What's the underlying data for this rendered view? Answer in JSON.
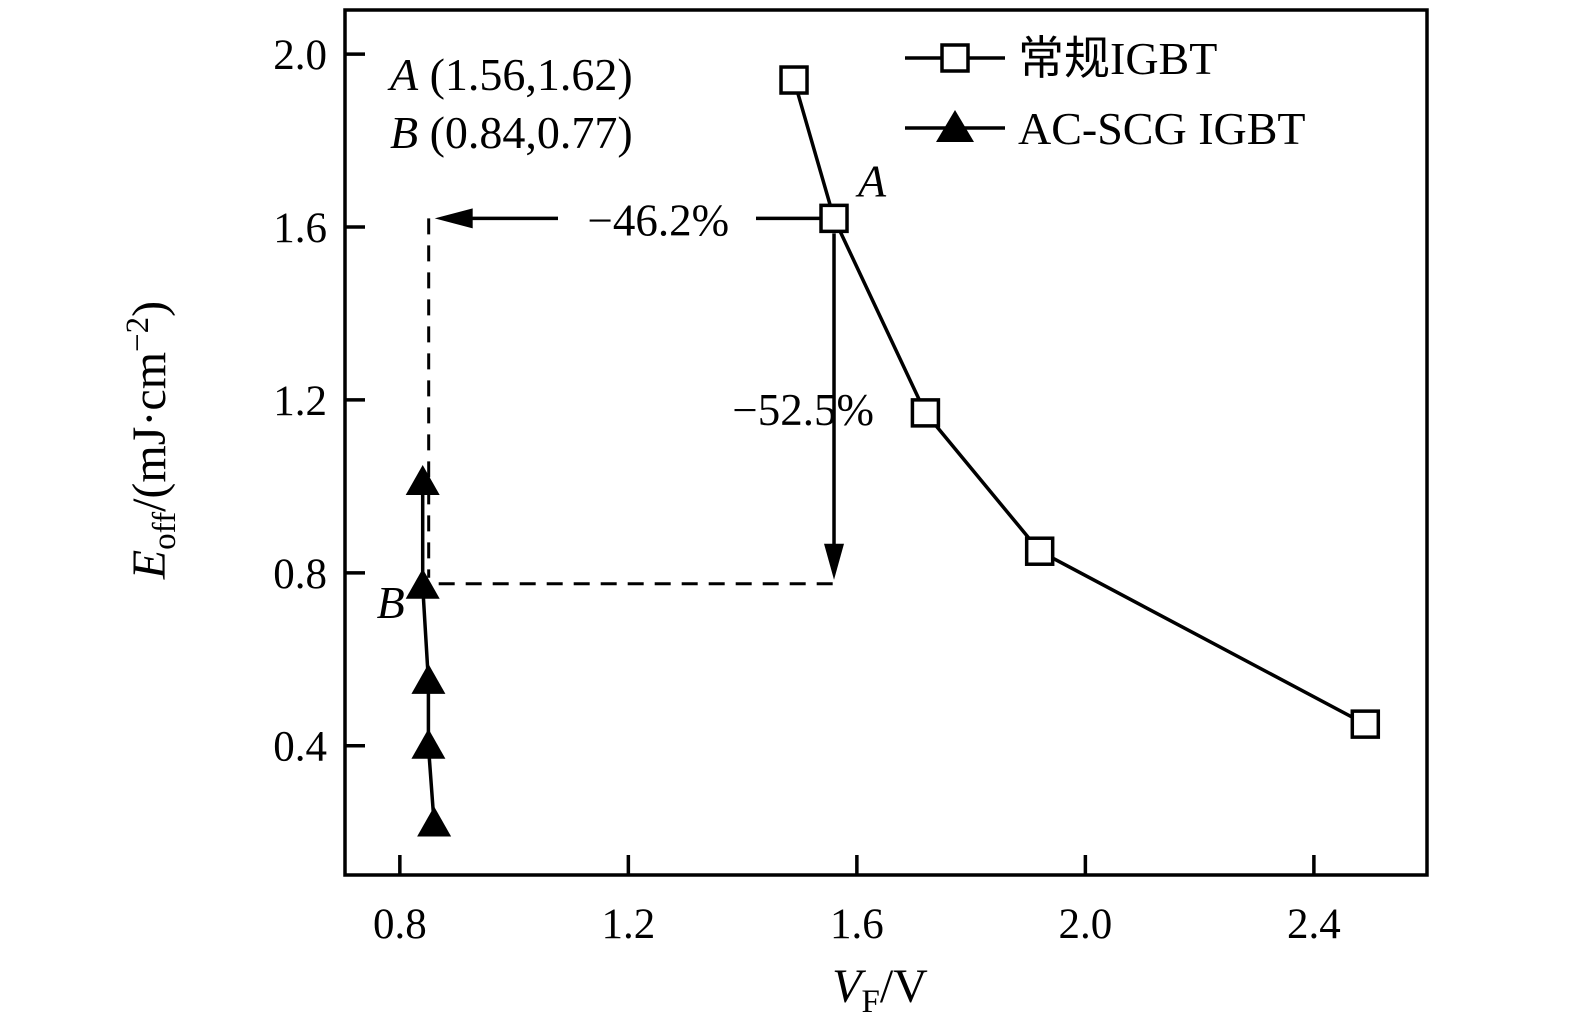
{
  "figure": {
    "background": "#ffffff",
    "line_color": "#000000"
  },
  "chart_data": {
    "type": "line",
    "title": "",
    "grid": false,
    "legend_position": "top-right",
    "xlabel": "V_F/V",
    "ylabel": "E_off/(mJ·cm−2)",
    "xlabel_parts": {
      "var": "V",
      "sub": "F",
      "end": "/V"
    },
    "ylabel_parts": {
      "var": "E",
      "sub": "off",
      "mid": "/(mJ·cm",
      "sup": "−2",
      "end": ")"
    },
    "xlim": [
      0.704,
      2.598
    ],
    "ylim": [
      0.101,
      2.102
    ],
    "x_tick_values": [
      0.8,
      1.2,
      1.6,
      2.0,
      2.4
    ],
    "x_tick_labels": [
      "0.8",
      "1.2",
      "1.6",
      "2.0",
      "2.4"
    ],
    "y_tick_values": [
      2.0,
      1.6,
      1.2,
      0.8,
      0.4
    ],
    "y_tick_labels": [
      "2.0",
      "1.6",
      "1.2",
      "0.8",
      "0.4"
    ],
    "series": [
      {
        "name": "常规IGBT",
        "marker": "open-square",
        "color": "#000000",
        "points": [
          [
            1.49,
            1.94
          ],
          [
            1.56,
            1.62
          ],
          [
            1.72,
            1.17
          ],
          [
            1.92,
            0.85
          ],
          [
            2.49,
            0.45
          ]
        ]
      },
      {
        "name": "AC-SCG IGBT",
        "marker": "filled-triangle",
        "color": "#000000",
        "points": [
          [
            0.84,
            1.01
          ],
          [
            0.84,
            0.77
          ],
          [
            0.85,
            0.55
          ],
          [
            0.85,
            0.4
          ],
          [
            0.86,
            0.22
          ]
        ]
      }
    ],
    "key_points": {
      "A": [
        1.56,
        1.62
      ],
      "B": [
        0.84,
        0.77
      ]
    },
    "annotations": {
      "point_labels": [
        {
          "text": "A"
        },
        {
          "text": "B"
        }
      ],
      "coord_note_lines": [
        {
          "var": "A",
          "rest": " (1.56,1.62)"
        },
        {
          "var": "B",
          "rest": " (0.84,0.77)"
        }
      ],
      "reduction_arrows": [
        {
          "label": "−46.2%",
          "direction": "left"
        },
        {
          "label": "−52.5%",
          "direction": "down"
        }
      ]
    }
  }
}
